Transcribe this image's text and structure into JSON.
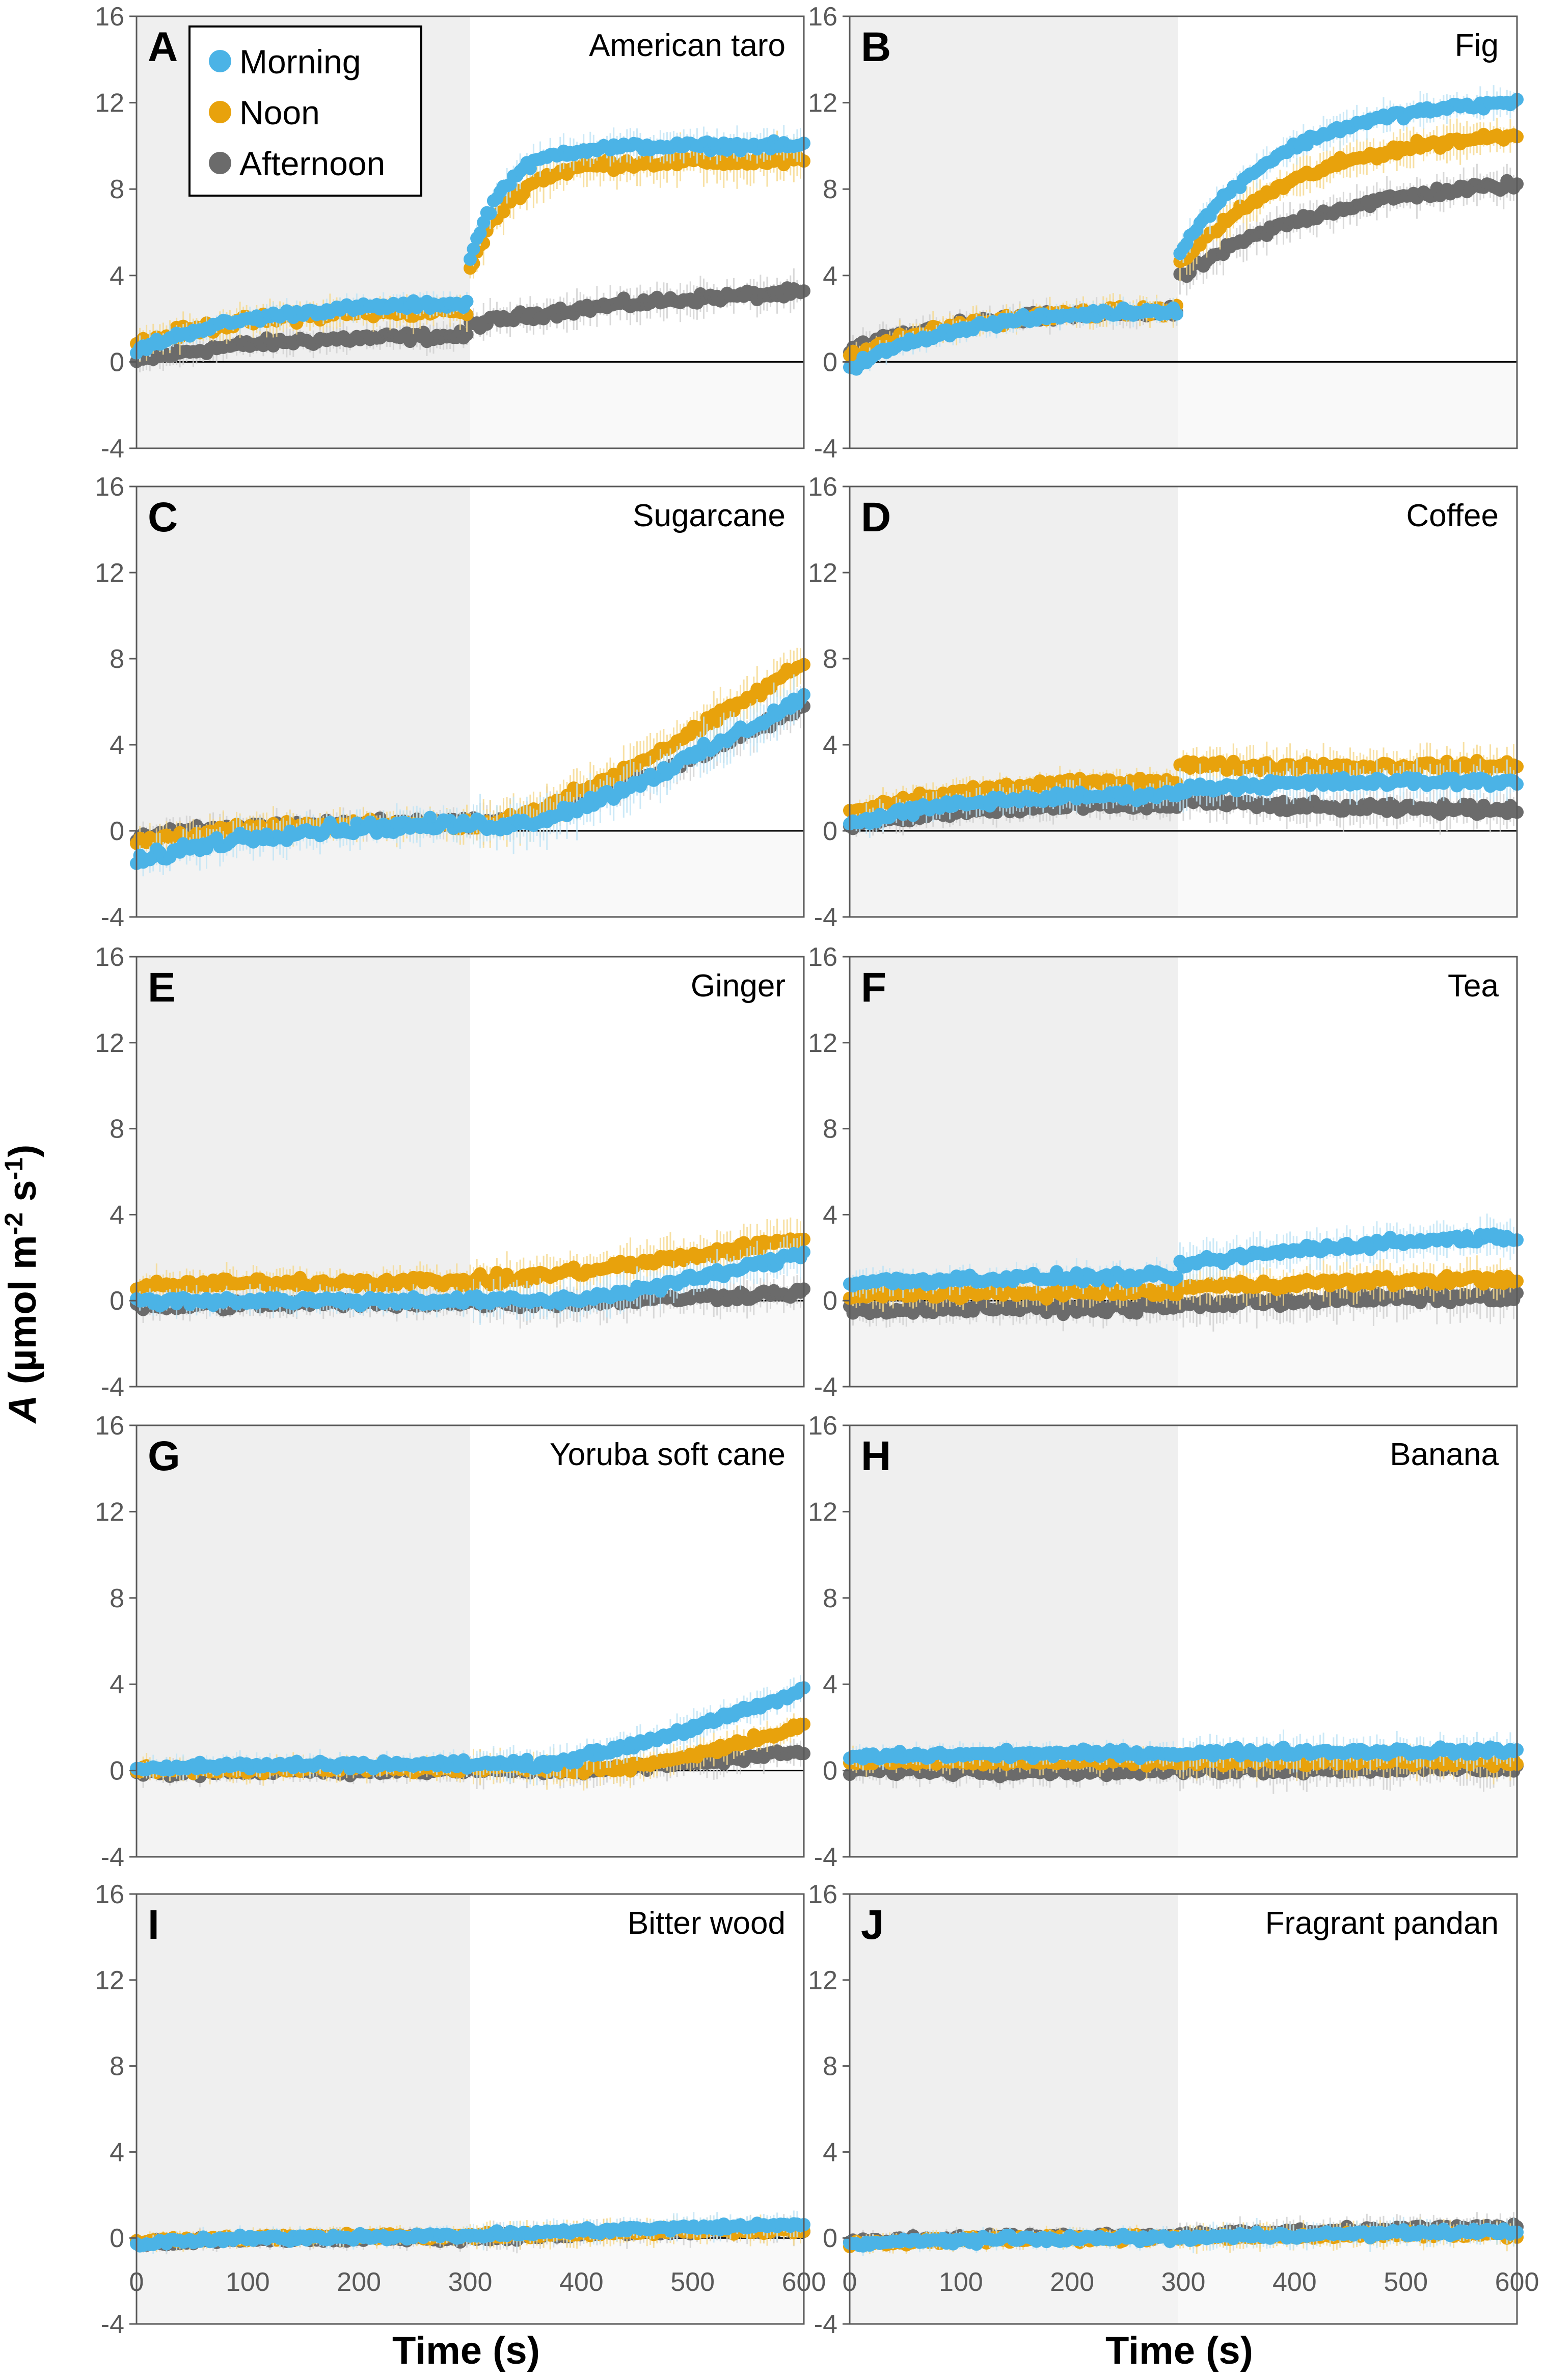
{
  "colors": {
    "Morning": "#4BB3E6",
    "Noon": "#E8A20C",
    "Afternoon": "#6B6B6B",
    "Morning_band": "#BFE3F5",
    "Noon_band": "#F5D88C",
    "Afternoon_band": "#CFCFCF",
    "dark_shade": "#EFEFEF",
    "axis": "#000000",
    "tick_text": "#595959"
  },
  "chart_data": {
    "type": "scatter",
    "xlabel": "Time (s)",
    "ylabel": "A (µmol m⁻² s⁻¹)",
    "ylabel_parts": {
      "italic": "A",
      "rest": " (µmol m",
      "sup1": "-2",
      "mid": " s",
      "sup2": "-1",
      "end": ")"
    },
    "xlim": [
      0,
      600
    ],
    "ylim": [
      -4,
      16
    ],
    "xticks": [
      "0",
      "100",
      "200",
      "300",
      "400",
      "500",
      "600"
    ],
    "yticks": [
      "-4",
      "0",
      "4",
      "8",
      "12",
      "16"
    ],
    "dark_period": [
      0,
      300
    ],
    "legend": {
      "placement": "top-left of panel A",
      "entries": [
        "Morning",
        "Noon",
        "Afternoon"
      ]
    },
    "panels": [
      {
        "letter": "A",
        "species": "American taro",
        "lightStep": 300,
        "series": [
          {
            "name": "Morning",
            "start": 0.5,
            "dark": 2.7,
            "final": 10.0,
            "tau": 30,
            "jump": 2.0,
            "noise": 0.25
          },
          {
            "name": "Noon",
            "start": 0.8,
            "dark": 2.4,
            "final": 9.3,
            "tau": 35,
            "jump": 1.8,
            "noise": 0.35
          },
          {
            "name": "Afternoon",
            "start": 0.0,
            "dark": 1.2,
            "final": 3.2,
            "tau": 200,
            "jump": 0.5,
            "noise": 0.3
          }
        ]
      },
      {
        "letter": "B",
        "species": "Fig",
        "lightStep": 295,
        "series": [
          {
            "name": "Morning",
            "start": -0.3,
            "dark": 2.4,
            "final": 12.0,
            "tau": 90,
            "jump": 2.5,
            "noise": 0.25
          },
          {
            "name": "Noon",
            "start": 0.2,
            "dark": 2.4,
            "final": 10.5,
            "tau": 110,
            "jump": 2.0,
            "noise": 0.3
          },
          {
            "name": "Afternoon",
            "start": 0.5,
            "dark": 2.3,
            "final": 8.2,
            "tau": 130,
            "jump": 1.5,
            "noise": 0.3
          }
        ]
      },
      {
        "letter": "C",
        "species": "Sugarcane",
        "lightStep": 300,
        "series": [
          {
            "name": "Morning",
            "start": -1.5,
            "dark": 0.3,
            "final": 6.2,
            "lag": 40,
            "noise": 0.4
          },
          {
            "name": "Noon",
            "start": -0.5,
            "dark": 0.3,
            "final": 7.8,
            "lag": 15,
            "noise": 0.35
          },
          {
            "name": "Afternoon",
            "start": -0.3,
            "dark": 0.4,
            "final": 5.8,
            "lag": 25,
            "noise": 0.3
          }
        ]
      },
      {
        "letter": "D",
        "species": "Coffee",
        "lightStep": 295,
        "series": [
          {
            "name": "Morning",
            "start": 0.3,
            "dark": 1.7,
            "final": 2.3,
            "tau": 80,
            "jump": 0.2,
            "noise": 0.3
          },
          {
            "name": "Noon",
            "start": 0.8,
            "dark": 2.3,
            "final": 3.0,
            "tau": 20,
            "jump": 0.8,
            "noise": 0.3
          },
          {
            "name": "Afternoon",
            "start": 0.2,
            "dark": 1.2,
            "final": 1.0,
            "tau": 80,
            "jump": 0.3,
            "noise": 0.3
          }
        ]
      },
      {
        "letter": "E",
        "species": "Ginger",
        "lightStep": 300,
        "series": [
          {
            "name": "Morning",
            "start": 0.0,
            "dark": 0.0,
            "final": 2.2,
            "lag": 80,
            "noise": 0.3
          },
          {
            "name": "Noon",
            "start": 0.6,
            "dark": 0.9,
            "final": 2.9,
            "lag": 0,
            "noise": 0.35
          },
          {
            "name": "Afternoon",
            "start": -0.3,
            "dark": -0.1,
            "final": 0.4,
            "lag": 60,
            "noise": 0.3
          }
        ]
      },
      {
        "letter": "F",
        "species": "Tea",
        "lightStep": 295,
        "series": [
          {
            "name": "Morning",
            "start": 0.8,
            "dark": 1.1,
            "final": 3.0,
            "tau": 200,
            "jump": 0.5,
            "noise": 0.3
          },
          {
            "name": "Noon",
            "start": 0.2,
            "dark": 0.4,
            "final": 1.0,
            "tau": 200,
            "jump": 0.2,
            "noise": 0.3
          },
          {
            "name": "Afternoon",
            "start": -0.4,
            "dark": -0.3,
            "final": 0.2,
            "tau": 200,
            "jump": 0.1,
            "noise": 0.35
          }
        ]
      },
      {
        "letter": "G",
        "species": "Yoruba soft cane",
        "lightStep": 300,
        "series": [
          {
            "name": "Morning",
            "start": 0.1,
            "dark": 0.3,
            "final": 3.7,
            "lag": 60,
            "noise": 0.25
          },
          {
            "name": "Noon",
            "start": 0.0,
            "dark": 0.1,
            "final": 2.1,
            "lag": 130,
            "noise": 0.25
          },
          {
            "name": "Afternoon",
            "start": -0.1,
            "dark": 0.0,
            "final": 0.9,
            "lag": 100,
            "noise": 0.25
          }
        ]
      },
      {
        "letter": "H",
        "species": "Banana",
        "lightStep": 295,
        "series": [
          {
            "name": "Morning",
            "start": 0.6,
            "dark": 0.8,
            "final": 0.9,
            "tau": 100,
            "jump": 0.0,
            "noise": 0.25
          },
          {
            "name": "Noon",
            "start": 0.4,
            "dark": 0.4,
            "final": 0.4,
            "tau": 100,
            "jump": 0.0,
            "noise": 0.25
          },
          {
            "name": "Afternoon",
            "start": 0.0,
            "dark": 0.0,
            "final": 0.1,
            "tau": 100,
            "jump": 0.0,
            "noise": 0.3
          }
        ]
      },
      {
        "letter": "I",
        "species": "Bitter wood",
        "lightStep": 300,
        "series": [
          {
            "name": "Morning",
            "start": -0.3,
            "dark": 0.1,
            "final": 0.6,
            "tau": 300,
            "jump": 0.0,
            "noise": 0.2
          },
          {
            "name": "Noon",
            "start": -0.2,
            "dark": 0.1,
            "final": 0.4,
            "tau": 300,
            "jump": 0.0,
            "noise": 0.2
          },
          {
            "name": "Afternoon",
            "start": -0.3,
            "dark": 0.0,
            "final": 0.4,
            "tau": 300,
            "jump": 0.0,
            "noise": 0.2
          }
        ]
      },
      {
        "letter": "J",
        "species": "Fragrant pandan",
        "lightStep": 295,
        "series": [
          {
            "name": "Morning",
            "start": -0.3,
            "dark": 0.0,
            "final": 0.3,
            "tau": 300,
            "jump": 0.0,
            "noise": 0.2
          },
          {
            "name": "Noon",
            "start": -0.3,
            "dark": 0.0,
            "final": 0.2,
            "tau": 300,
            "jump": 0.0,
            "noise": 0.2
          },
          {
            "name": "Afternoon",
            "start": -0.2,
            "dark": 0.1,
            "final": 0.5,
            "tau": 300,
            "jump": 0.0,
            "noise": 0.2
          }
        ]
      }
    ]
  }
}
